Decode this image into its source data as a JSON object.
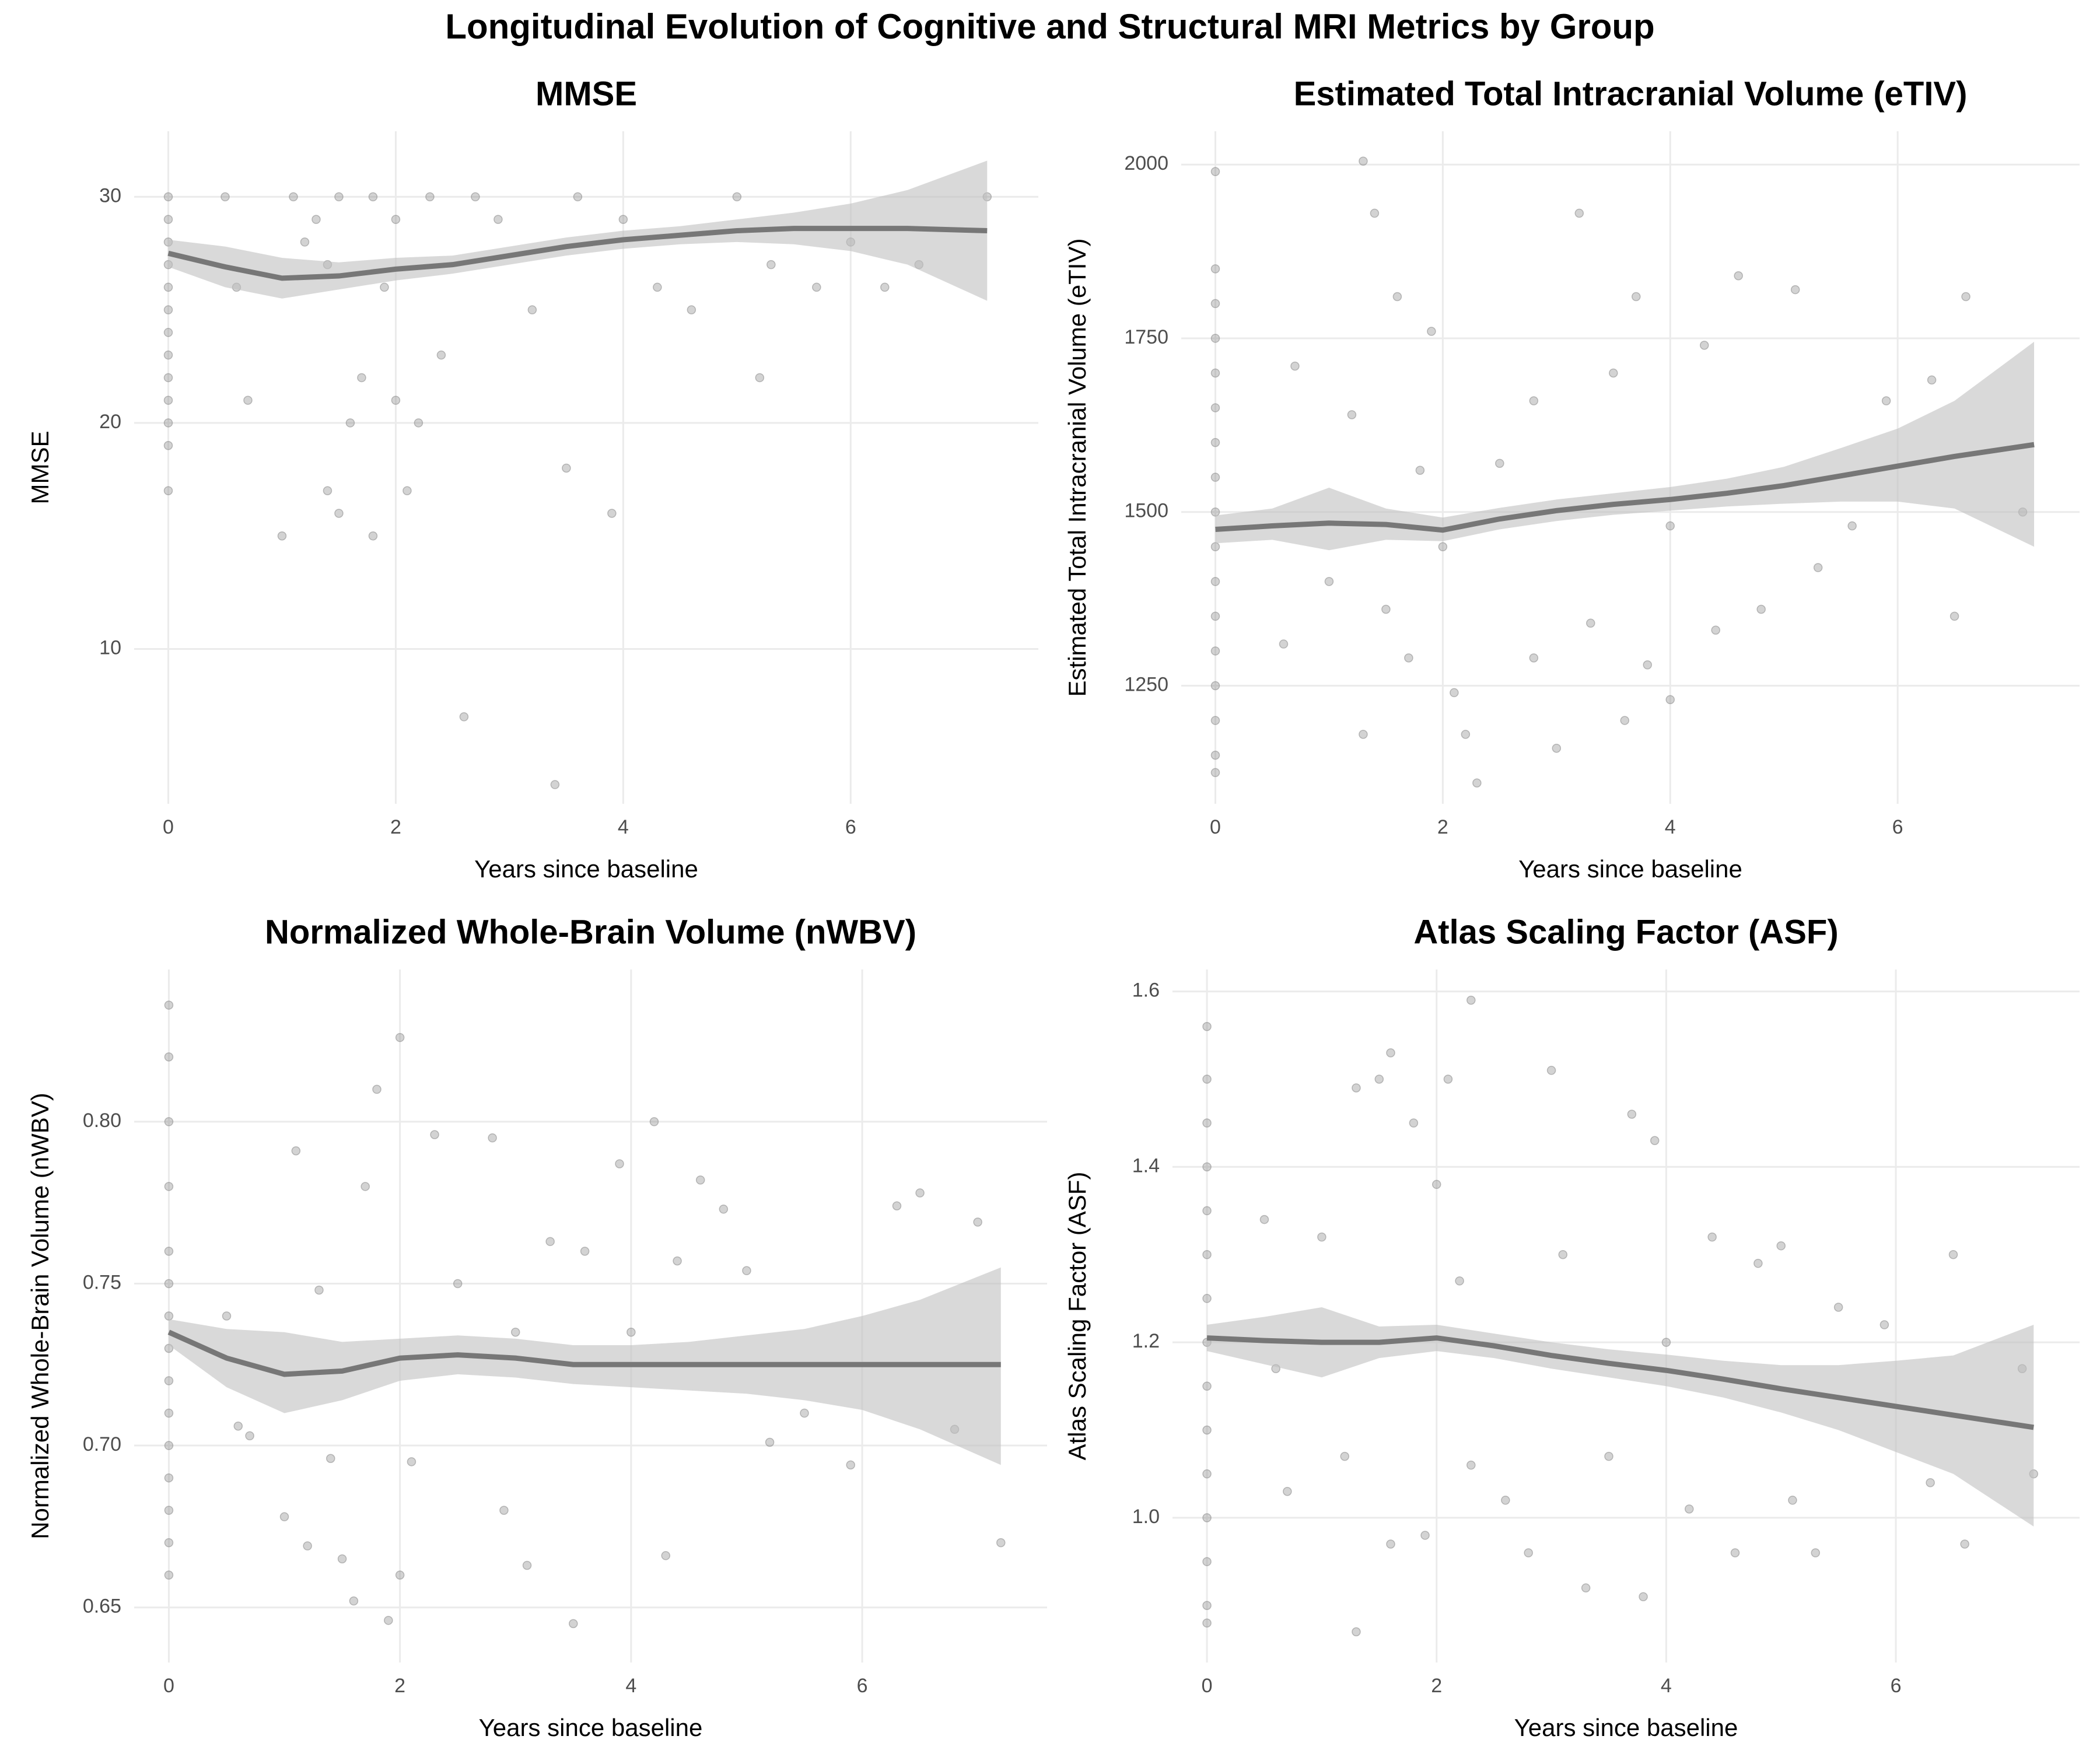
{
  "title": "Longitudinal Evolution of Cognitive and Structural MRI Metrics by Group",
  "chart_data": [
    {
      "type": "scatter",
      "title": "MMSE",
      "xlabel": "Years since baseline",
      "ylabel": "MMSE",
      "xlim": [
        -0.3,
        7.65
      ],
      "ylim": [
        3.15,
        32.9
      ],
      "xticks": [
        0,
        2,
        4,
        6
      ],
      "yticks": [
        10,
        20,
        30
      ],
      "grid": true,
      "point_color": "#808080",
      "line_color": "#777777",
      "band_color": "#bfbfbf",
      "x": [
        0,
        0,
        0,
        0,
        0,
        0,
        0,
        0,
        0,
        0,
        0,
        0,
        0,
        0.5,
        0.6,
        0.7,
        1,
        1.1,
        1.2,
        1.3,
        1.4,
        1.4,
        1.5,
        1.5,
        1.6,
        1.7,
        1.8,
        1.8,
        1.9,
        2,
        2,
        2.1,
        2.2,
        2.3,
        2.4,
        2.6,
        2.7,
        2.9,
        3.2,
        3.4,
        3.5,
        3.6,
        3.9,
        4,
        4.3,
        4.6,
        5,
        5.2,
        5.3,
        5.7,
        6,
        6.3,
        6.6,
        7.2
      ],
      "y": [
        30,
        29,
        28,
        27,
        26,
        25,
        24,
        23,
        22,
        21,
        20,
        19,
        17,
        30,
        26,
        21,
        15,
        30,
        28,
        29,
        17,
        27,
        16,
        30,
        20,
        22,
        15,
        30,
        26,
        29,
        21,
        17,
        20,
        30,
        23,
        7,
        30,
        29,
        25,
        4,
        18,
        30,
        16,
        29,
        26,
        25,
        30,
        22,
        27,
        26,
        28,
        26,
        27,
        30
      ],
      "smooth": {
        "x": [
          0,
          0.5,
          1,
          1.5,
          2,
          2.5,
          3,
          3.5,
          4,
          4.5,
          5,
          5.5,
          6,
          6.5,
          7.2
        ],
        "y": [
          27.5,
          26.9,
          26.4,
          26.5,
          26.8,
          27,
          27.4,
          27.8,
          28.1,
          28.3,
          28.5,
          28.6,
          28.6,
          28.6,
          28.5
        ],
        "lower": [
          26.9,
          26.0,
          25.5,
          25.9,
          26.3,
          26.6,
          27.0,
          27.4,
          27.7,
          27.9,
          28.0,
          27.9,
          27.6,
          27.0,
          25.4
        ],
        "upper": [
          28.1,
          27.8,
          27.3,
          27.1,
          27.3,
          27.4,
          27.8,
          28.2,
          28.5,
          28.7,
          29.0,
          29.3,
          29.7,
          30.3,
          31.6
        ]
      }
    },
    {
      "type": "scatter",
      "title": "Estimated Total Intracranial Volume (eTIV)",
      "xlabel": "Years since baseline",
      "ylabel": "Estimated Total Intracranial Volume (eTIV)",
      "xlim": [
        -0.3,
        7.6
      ],
      "ylim": [
        1080,
        2048
      ],
      "xticks": [
        0,
        2,
        4,
        6
      ],
      "yticks": [
        1250,
        1500,
        1750,
        2000
      ],
      "grid": true,
      "point_color": "#808080",
      "line_color": "#777777",
      "band_color": "#bfbfbf",
      "x": [
        0,
        0,
        0,
        0,
        0,
        0,
        0,
        0,
        0,
        0,
        0,
        0,
        0,
        0,
        0,
        0,
        0,
        0.6,
        0.7,
        1,
        1.2,
        1.3,
        1.3,
        1.4,
        1.5,
        1.6,
        1.7,
        1.8,
        1.9,
        2,
        2.1,
        2.2,
        2.3,
        2.5,
        2.8,
        2.8,
        3,
        3.2,
        3.3,
        3.5,
        3.6,
        3.7,
        3.8,
        4,
        4,
        4.3,
        4.4,
        4.6,
        4.8,
        5.1,
        5.3,
        5.6,
        5.9,
        6.3,
        6.5,
        6.6,
        7.1
      ],
      "y": [
        1990,
        1850,
        1800,
        1750,
        1700,
        1650,
        1600,
        1550,
        1500,
        1450,
        1400,
        1350,
        1300,
        1250,
        1200,
        1150,
        1125,
        1310,
        1710,
        1400,
        1640,
        2005,
        1180,
        1930,
        1360,
        1810,
        1290,
        1560,
        1760,
        1450,
        1240,
        1180,
        1110,
        1570,
        1660,
        1290,
        1160,
        1930,
        1340,
        1700,
        1200,
        1810,
        1280,
        1230,
        1480,
        1740,
        1330,
        1840,
        1360,
        1820,
        1420,
        1480,
        1660,
        1690,
        1350,
        1810,
        1500
      ],
      "smooth": {
        "x": [
          0,
          0.5,
          1,
          1.5,
          2,
          2.5,
          3,
          3.5,
          4,
          4.5,
          5,
          5.5,
          6,
          6.5,
          7.2
        ],
        "y": [
          1475,
          1480,
          1484,
          1482,
          1474,
          1490,
          1502,
          1511,
          1518,
          1527,
          1538,
          1552,
          1566,
          1580,
          1597
        ],
        "lower": [
          1455,
          1460,
          1445,
          1460,
          1458,
          1475,
          1487,
          1496,
          1502,
          1508,
          1512,
          1515,
          1515,
          1505,
          1450
        ],
        "upper": [
          1495,
          1505,
          1535,
          1505,
          1492,
          1506,
          1518,
          1527,
          1536,
          1548,
          1565,
          1592,
          1620,
          1660,
          1745
        ]
      }
    },
    {
      "type": "scatter",
      "title": "Normalized Whole-Brain Volume (nWBV)",
      "xlabel": "Years since baseline",
      "ylabel": "Normalized Whole-Brain Volume (nWBV)",
      "xlim": [
        -0.3,
        7.6
      ],
      "ylim": [
        0.633,
        0.847
      ],
      "xticks": [
        0,
        2,
        4,
        6
      ],
      "yticks": [
        0.65,
        {
          "value": 0.7,
          "label": "0.70"
        },
        0.75,
        {
          "value": 0.8,
          "label": "0.80"
        }
      ],
      "grid": true,
      "point_color": "#808080",
      "line_color": "#777777",
      "band_color": "#bfbfbf",
      "x": [
        0,
        0,
        0,
        0,
        0,
        0,
        0,
        0,
        0,
        0,
        0,
        0,
        0,
        0,
        0,
        0.5,
        0.6,
        0.7,
        1,
        1.1,
        1.2,
        1.3,
        1.4,
        1.5,
        1.6,
        1.7,
        1.8,
        1.9,
        2,
        2,
        2.1,
        2.3,
        2.5,
        2.8,
        2.9,
        3,
        3.1,
        3.3,
        3.5,
        3.6,
        3.9,
        4,
        4.2,
        4.3,
        4.4,
        4.6,
        4.8,
        5,
        5.2,
        5.5,
        5.9,
        6.3,
        6.5,
        6.8,
        7,
        7.2
      ],
      "y": [
        0.836,
        0.82,
        0.8,
        0.78,
        0.76,
        0.75,
        0.74,
        0.73,
        0.72,
        0.71,
        0.7,
        0.69,
        0.68,
        0.67,
        0.66,
        0.74,
        0.706,
        0.703,
        0.678,
        0.791,
        0.669,
        0.748,
        0.696,
        0.665,
        0.652,
        0.78,
        0.81,
        0.646,
        0.826,
        0.66,
        0.695,
        0.796,
        0.75,
        0.795,
        0.68,
        0.735,
        0.663,
        0.763,
        0.645,
        0.76,
        0.787,
        0.735,
        0.8,
        0.666,
        0.757,
        0.782,
        0.773,
        0.754,
        0.701,
        0.71,
        0.694,
        0.774,
        0.778,
        0.705,
        0.769,
        0.67
      ],
      "smooth": {
        "x": [
          0,
          0.5,
          1,
          1.5,
          2,
          2.5,
          3,
          3.5,
          4,
          4.5,
          5,
          5.5,
          6,
          6.5,
          7.2
        ],
        "y": [
          0.735,
          0.727,
          0.722,
          0.723,
          0.727,
          0.728,
          0.727,
          0.725,
          0.725,
          0.725,
          0.725,
          0.725,
          0.725,
          0.725,
          0.725
        ],
        "lower": [
          0.731,
          0.718,
          0.71,
          0.714,
          0.72,
          0.722,
          0.721,
          0.719,
          0.718,
          0.717,
          0.716,
          0.714,
          0.711,
          0.705,
          0.694
        ],
        "upper": [
          0.739,
          0.736,
          0.735,
          0.732,
          0.733,
          0.734,
          0.733,
          0.731,
          0.731,
          0.732,
          0.734,
          0.736,
          0.74,
          0.745,
          0.755
        ]
      }
    },
    {
      "type": "scatter",
      "title": "Atlas Scaling Factor (ASF)",
      "xlabel": "Years since baseline",
      "ylabel": "Atlas Scaling Factor (ASF)",
      "xlim": [
        -0.3,
        7.6
      ],
      "ylim": [
        0.835,
        1.625
      ],
      "xticks": [
        0,
        2,
        4,
        6
      ],
      "yticks": [
        {
          "value": 1.0,
          "label": "1.0"
        },
        {
          "value": 1.2,
          "label": "1.2"
        },
        {
          "value": 1.4,
          "label": "1.4"
        },
        {
          "value": 1.6,
          "label": "1.6"
        }
      ],
      "grid": true,
      "point_color": "#808080",
      "line_color": "#777777",
      "band_color": "#bfbfbf",
      "x": [
        0,
        0,
        0,
        0,
        0,
        0,
        0,
        0,
        0,
        0,
        0,
        0,
        0,
        0,
        0,
        0.5,
        0.6,
        0.7,
        1,
        1.2,
        1.3,
        1.3,
        1.5,
        1.6,
        1.6,
        1.8,
        1.9,
        2,
        2.1,
        2.2,
        2.3,
        2.3,
        2.6,
        2.8,
        3,
        3.1,
        3.3,
        3.5,
        3.7,
        3.8,
        3.9,
        4,
        4.2,
        4.4,
        4.6,
        4.8,
        5,
        5.1,
        5.3,
        5.5,
        5.9,
        6.3,
        6.5,
        6.6,
        7.1,
        7.2
      ],
      "y": [
        1.56,
        1.5,
        1.45,
        1.4,
        1.35,
        1.3,
        1.25,
        1.2,
        1.15,
        1.1,
        1.05,
        1.0,
        0.95,
        0.9,
        0.88,
        1.34,
        1.17,
        1.03,
        1.32,
        1.07,
        0.87,
        1.49,
        1.5,
        1.53,
        0.97,
        1.45,
        0.98,
        1.38,
        1.5,
        1.27,
        1.59,
        1.06,
        1.02,
        0.96,
        1.51,
        1.3,
        0.92,
        1.07,
        1.46,
        0.91,
        1.43,
        1.2,
        1.01,
        1.32,
        0.96,
        1.29,
        1.31,
        1.02,
        0.96,
        1.24,
        1.22,
        1.04,
        1.3,
        0.97,
        1.17,
        1.05
      ],
      "smooth": {
        "x": [
          0,
          0.5,
          1,
          1.5,
          2,
          2.5,
          3,
          3.5,
          4,
          4.5,
          5,
          5.5,
          6,
          6.5,
          7.2
        ],
        "y": [
          1.205,
          1.202,
          1.2,
          1.2,
          1.205,
          1.196,
          1.185,
          1.176,
          1.168,
          1.158,
          1.147,
          1.137,
          1.127,
          1.117,
          1.103
        ],
        "lower": [
          1.19,
          1.175,
          1.16,
          1.182,
          1.19,
          1.182,
          1.17,
          1.16,
          1.15,
          1.137,
          1.12,
          1.1,
          1.075,
          1.05,
          0.99
        ],
        "upper": [
          1.22,
          1.229,
          1.24,
          1.218,
          1.22,
          1.21,
          1.2,
          1.192,
          1.186,
          1.179,
          1.174,
          1.174,
          1.179,
          1.185,
          1.22
        ]
      }
    }
  ]
}
